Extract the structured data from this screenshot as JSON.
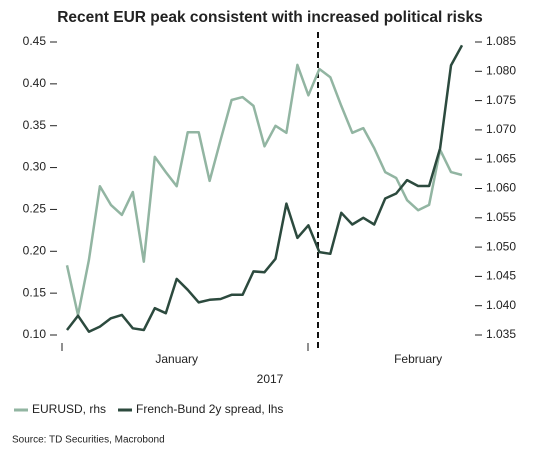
{
  "chart_data": {
    "type": "line",
    "title": "Recent EUR peak consistent with increased political risks",
    "x_label": "2017",
    "source": "Source: TD Securities, Macrobond",
    "categories": [
      null,
      null,
      null,
      null,
      null,
      null,
      null,
      null,
      null,
      null,
      "January",
      null,
      null,
      null,
      null,
      null,
      null,
      null,
      null,
      null,
      null,
      null,
      null,
      null,
      null,
      null,
      null,
      null,
      null,
      null,
      null,
      null,
      "February",
      null,
      null,
      null,
      null
    ],
    "series": [
      {
        "name": "EURUSD, rhs",
        "color": "#92b5a2",
        "axis": "y2",
        "values": [
          1.0469,
          1.0384,
          1.0478,
          1.0604,
          1.0572,
          1.0555,
          1.0594,
          1.0475,
          1.0654,
          1.0628,
          1.0604,
          1.0696,
          1.0696,
          1.0613,
          1.0683,
          1.0751,
          1.0756,
          1.0741,
          1.0672,
          1.0707,
          1.0695,
          1.0811,
          1.0759,
          1.0804,
          1.079,
          1.0741,
          1.0695,
          1.0703,
          1.0669,
          1.0628,
          1.0618,
          1.058,
          1.0563,
          1.0572,
          1.0666,
          1.0628,
          1.0623
        ]
      },
      {
        "name": "French-Bund 2y spread, lhs",
        "color": "#2c4a3e",
        "values": [
          0.106,
          0.123,
          0.104,
          0.11,
          0.12,
          0.124,
          0.108,
          0.106,
          0.132,
          0.126,
          0.167,
          0.154,
          0.139,
          0.142,
          0.143,
          0.148,
          0.148,
          0.176,
          0.175,
          0.191,
          0.257,
          0.216,
          0.231,
          0.199,
          0.197,
          0.246,
          0.232,
          0.24,
          0.232,
          0.263,
          0.269,
          0.285,
          0.278,
          0.278,
          0.323,
          0.422,
          0.446
        ]
      }
    ],
    "ylim": [
      0.1,
      0.45
    ],
    "yticks": [
      {
        "value": 0.1,
        "label": "0.10"
      },
      0.15,
      {
        "value": 0.2,
        "label": "0.20"
      },
      0.25,
      {
        "value": 0.3,
        "label": "0.30"
      },
      0.35,
      {
        "value": 0.4,
        "label": "0.40"
      },
      0.45
    ],
    "y2lim": [
      1.035,
      1.085
    ],
    "y2ticks": [
      1.035,
      {
        "value": 1.04,
        "label": "1.040"
      },
      1.045,
      {
        "value": 1.05,
        "label": "1.050"
      },
      1.055,
      {
        "value": 1.06,
        "label": "1.060"
      },
      1.065,
      {
        "value": 1.07,
        "label": "1.070"
      },
      1.075,
      {
        "value": 1.08,
        "label": "1.080"
      },
      1.085
    ],
    "legend": "bottom-left"
  }
}
